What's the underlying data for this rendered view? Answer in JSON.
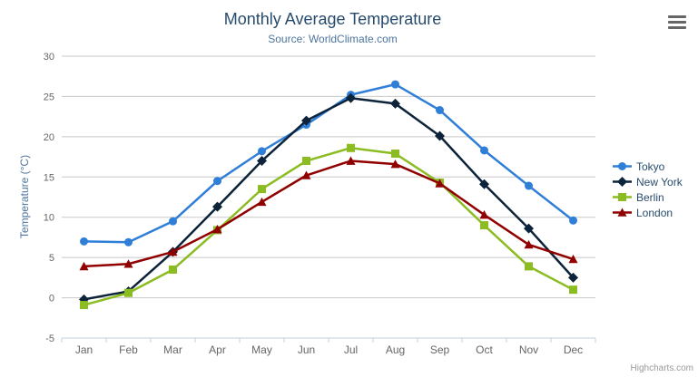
{
  "chart_data": {
    "type": "line",
    "title": "Monthly Average Temperature",
    "subtitle": "Source: WorldClimate.com",
    "xlabel": "",
    "ylabel": "Temperature (°C)",
    "categories": [
      "Jan",
      "Feb",
      "Mar",
      "Apr",
      "May",
      "Jun",
      "Jul",
      "Aug",
      "Sep",
      "Oct",
      "Nov",
      "Dec"
    ],
    "yticks": [
      30,
      25,
      20,
      15,
      10,
      5,
      0,
      -5
    ],
    "ylim": [
      -5,
      30
    ],
    "grid": true,
    "legend_position": "right",
    "series": [
      {
        "name": "Tokyo",
        "color": "#2f7ed8",
        "marker": "circle",
        "values": [
          7.0,
          6.9,
          9.5,
          14.5,
          18.2,
          21.5,
          25.2,
          26.5,
          23.3,
          18.3,
          13.9,
          9.6
        ]
      },
      {
        "name": "New York",
        "color": "#0d233a",
        "marker": "diamond",
        "values": [
          -0.2,
          0.8,
          5.7,
          11.3,
          17.0,
          22.0,
          24.8,
          24.1,
          20.1,
          14.1,
          8.6,
          2.5
        ]
      },
      {
        "name": "Berlin",
        "color": "#8bbc21",
        "marker": "square",
        "values": [
          -0.9,
          0.6,
          3.5,
          8.4,
          13.5,
          17.0,
          18.6,
          17.9,
          14.3,
          9.0,
          3.9,
          1.0
        ]
      },
      {
        "name": "London",
        "color": "#910000",
        "marker": "triangle",
        "values": [
          3.9,
          4.2,
          5.7,
          8.5,
          11.9,
          15.2,
          17.0,
          16.6,
          14.2,
          10.3,
          6.6,
          4.8
        ]
      }
    ]
  },
  "credits": "Highcharts.com",
  "export_button": {
    "icon": "hamburger-menu-icon"
  },
  "palette": {
    "title_text": "#274b6d",
    "subtitle_text": "#4d759e",
    "axis_title_text": "#4d759e",
    "axis_label_text": "#666666",
    "grid_line": "#c8c8c8",
    "axis_line": "#c0d0e0",
    "legend_text": "#274b6d",
    "credits_text": "#999999",
    "menu_icon": "#666666",
    "background": "#ffffff"
  }
}
